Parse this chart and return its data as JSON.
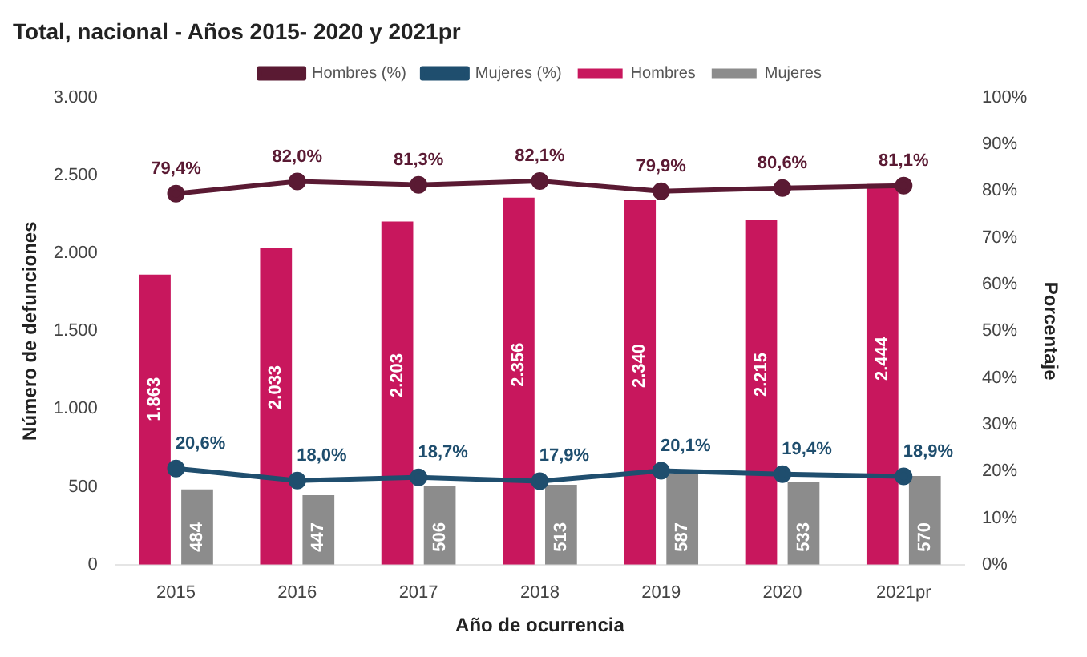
{
  "chart_data": {
    "type": "bar",
    "title": "Total, nacional - Años 2015- 2020 y 2021pr",
    "xlabel": "Año de ocurrencia",
    "ylabel": "Número de defunciones",
    "y2label": "Porcentaje",
    "categories": [
      "2015",
      "2016",
      "2017",
      "2018",
      "2019",
      "2020",
      "2021pr"
    ],
    "series": [
      {
        "name": "Hombres",
        "color": "#c8175d",
        "values": [
          1863,
          2033,
          2203,
          2356,
          2340,
          2215,
          2444
        ],
        "value_labels": [
          "1.863",
          "2.033",
          "2.203",
          "2.356",
          "2.340",
          "2.215",
          "2.444"
        ]
      },
      {
        "name": "Mujeres",
        "color": "#8c8c8c",
        "values": [
          484,
          447,
          506,
          513,
          587,
          533,
          570
        ],
        "value_labels": [
          "484",
          "447",
          "506",
          "513",
          "587",
          "533",
          "570"
        ]
      },
      {
        "name": "Hombres (%)",
        "type": "line",
        "axis": "y2",
        "color": "#5a1a33",
        "values": [
          79.4,
          82.0,
          81.3,
          82.1,
          79.9,
          80.6,
          81.1
        ],
        "value_labels": [
          "79,4%",
          "82,0%",
          "81,3%",
          "82,1%",
          "79,9%",
          "80,6%",
          "81,1%"
        ]
      },
      {
        "name": "Mujeres (%)",
        "type": "line",
        "axis": "y2",
        "color": "#1f4e6e",
        "values": [
          20.6,
          18.0,
          18.7,
          17.9,
          20.1,
          19.4,
          18.9
        ],
        "value_labels": [
          "20,6%",
          "18,0%",
          "18,7%",
          "17,9%",
          "20,1%",
          "19,4%",
          "18,9%"
        ]
      }
    ],
    "ylim": [
      0,
      3000
    ],
    "yticks": [
      0,
      {
        "value": 500,
        "label": "500"
      },
      {
        "value": 1000,
        "label": "1.000"
      },
      {
        "value": 1500,
        "label": "1.500"
      },
      {
        "value": 2000,
        "label": "2.000"
      },
      {
        "value": 2500,
        "label": "2.500"
      },
      {
        "value": 3000,
        "label": "3.000"
      }
    ],
    "y2lim": [
      0,
      100
    ],
    "y2ticks": [
      {
        "value": 0,
        "label": "0%"
      },
      {
        "value": 10,
        "label": "10%"
      },
      {
        "value": 20,
        "label": "20%"
      },
      {
        "value": 30,
        "label": "30%"
      },
      {
        "value": 40,
        "label": "40%"
      },
      {
        "value": 50,
        "label": "50%"
      },
      {
        "value": 60,
        "label": "60%"
      },
      {
        "value": 70,
        "label": "70%"
      },
      {
        "value": 80,
        "label": "80%"
      },
      {
        "value": 90,
        "label": "90%"
      },
      {
        "value": 100,
        "label": "100%"
      }
    ],
    "legend": "top",
    "marker": "circle",
    "line_style": "solid"
  }
}
